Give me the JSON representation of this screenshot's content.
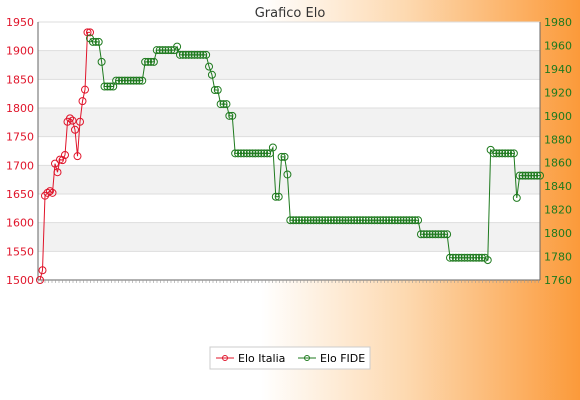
{
  "chart_data": {
    "type": "line",
    "title": "Grafico Elo",
    "y_left": {
      "ylim": [
        1500,
        1950
      ],
      "ticks": [
        1500,
        1550,
        1600,
        1650,
        1700,
        1750,
        1800,
        1850,
        1900,
        1950
      ],
      "color": "#e0142a"
    },
    "y_right": {
      "ylim": [
        1760,
        1980
      ],
      "ticks": [
        1760,
        1780,
        1800,
        1820,
        1840,
        1860,
        1880,
        1900,
        1920,
        1940,
        1960,
        1980
      ],
      "color": "#1e7a1e"
    },
    "grid": true,
    "legend": "bottom-center",
    "series": [
      {
        "name": "Elo Italia",
        "axis": "left",
        "color": "#e0142a",
        "values": [
          1500,
          1517,
          1647,
          1652,
          1655,
          1652,
          1703,
          1688,
          1710,
          1709,
          1718,
          1776,
          1782,
          1778,
          1762,
          1716,
          1776,
          1812,
          1832,
          1932,
          1932
        ]
      },
      {
        "name": "Elo FIDE",
        "axis": "right",
        "color": "#1e7a1e",
        "values": [
          1966,
          1963,
          1963,
          1963,
          1946,
          1925,
          1925,
          1925,
          1925,
          1930,
          1930,
          1930,
          1930,
          1930,
          1930,
          1930,
          1930,
          1930,
          1930,
          1946,
          1946,
          1946,
          1946,
          1956,
          1956,
          1956,
          1956,
          1956,
          1956,
          1956,
          1959,
          1952,
          1952,
          1952,
          1952,
          1952,
          1952,
          1952,
          1952,
          1952,
          1952,
          1942,
          1935,
          1922,
          1922,
          1910,
          1910,
          1910,
          1900,
          1900,
          1868,
          1868,
          1868,
          1868,
          1868,
          1868,
          1868,
          1868,
          1868,
          1868,
          1868,
          1868,
          1868,
          1873,
          1831,
          1831,
          1865,
          1865,
          1850,
          1811,
          1811,
          1811,
          1811,
          1811,
          1811,
          1811,
          1811,
          1811,
          1811,
          1811,
          1811,
          1811,
          1811,
          1811,
          1811,
          1811,
          1811,
          1811,
          1811,
          1811,
          1811,
          1811,
          1811,
          1811,
          1811,
          1811,
          1811,
          1811,
          1811,
          1811,
          1811,
          1811,
          1811,
          1811,
          1811,
          1811,
          1811,
          1811,
          1811,
          1811,
          1811,
          1811,
          1811,
          1811,
          1799,
          1799,
          1799,
          1799,
          1799,
          1799,
          1799,
          1799,
          1799,
          1799,
          1779,
          1779,
          1779,
          1779,
          1779,
          1779,
          1779,
          1779,
          1779,
          1779,
          1779,
          1779,
          1779,
          1777,
          1871,
          1868,
          1868,
          1868,
          1868,
          1868,
          1868,
          1868,
          1868,
          1830,
          1849,
          1849,
          1849,
          1849,
          1849,
          1849,
          1849,
          1849
        ]
      }
    ]
  }
}
